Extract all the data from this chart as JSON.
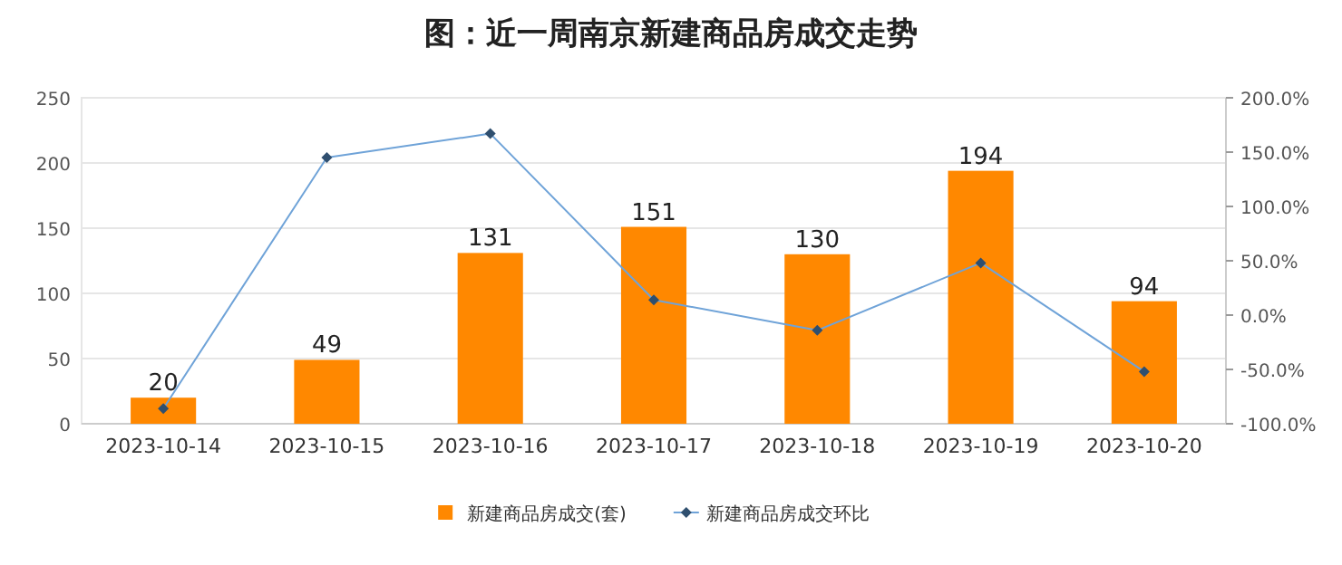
{
  "chart_data": {
    "type": "bar",
    "title": "图：近一周南京新建商品房成交走势",
    "categories": [
      "2023-10-14",
      "2023-10-15",
      "2023-10-16",
      "2023-10-17",
      "2023-10-18",
      "2023-10-19",
      "2023-10-20"
    ],
    "series": [
      {
        "name": "新建商品房成交(套)",
        "color": "#ff8800",
        "values": [
          20,
          49,
          131,
          151,
          130,
          194,
          94
        ],
        "value_labels": [
          "20",
          "49",
          "131",
          "151",
          "130",
          "194",
          "94"
        ]
      },
      {
        "name": "新建商品房成交环比",
        "type": "line",
        "axis": "y2",
        "color": "#6fa3d8",
        "marker": "diamond",
        "values": [
          -86,
          145,
          167,
          14,
          -14,
          48,
          -52
        ]
      }
    ],
    "ylim": [
      0,
      250
    ],
    "yticks": [
      0,
      50,
      100,
      150,
      200,
      250
    ],
    "y2lim": [
      -100,
      200
    ],
    "y2ticks": [
      {
        "value": -100,
        "label": "-100.0%"
      },
      {
        "value": -50,
        "label": "-50.0%"
      },
      {
        "value": 0,
        "label": "0.0%"
      },
      {
        "value": 50,
        "label": "50.0%"
      },
      {
        "value": 100,
        "label": "100.0%"
      },
      {
        "value": 150,
        "label": "150.0%"
      },
      {
        "value": 200,
        "label": "200.0%"
      }
    ],
    "grid": "y",
    "legend": "bottom"
  }
}
